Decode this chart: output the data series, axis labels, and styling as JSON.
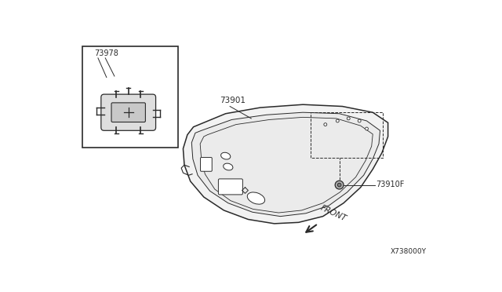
{
  "bg_color": "#ffffff",
  "line_color": "#2a2a2a",
  "label_73978": "73978",
  "label_73901": "73901",
  "label_73910F": "73910F",
  "label_front": "FRONT",
  "diagram_code": "X738000Y"
}
